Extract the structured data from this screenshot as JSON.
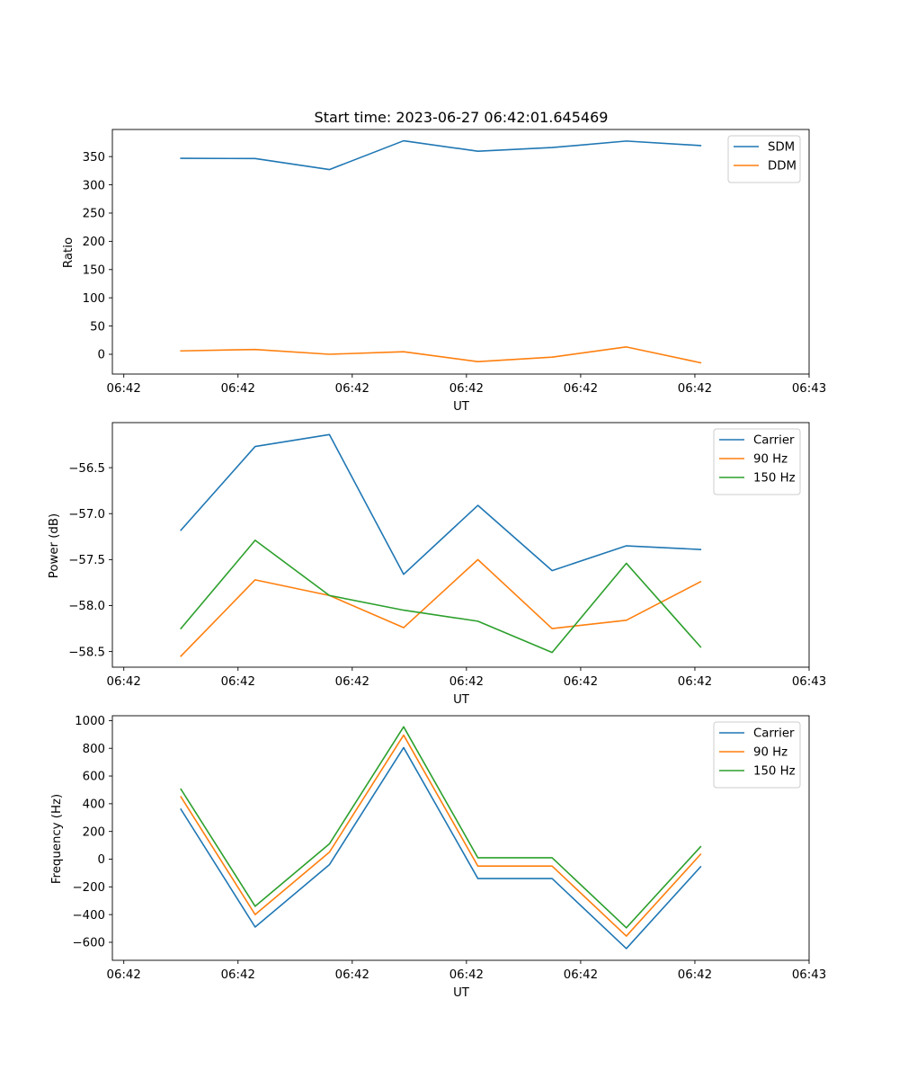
{
  "chart_data": [
    {
      "type": "line",
      "title": "Start time: 2023-06-27 06:42:01.645469",
      "xlabel": "UT",
      "ylabel": "Ratio",
      "x_tick_labels": [
        "06:42",
        "06:42",
        "06:42",
        "06:42",
        "06:42",
        "06:42",
        "06:43"
      ],
      "x_tick_positions": [
        0,
        1,
        2,
        3,
        4,
        5,
        6
      ],
      "xlim": [
        -0.1,
        6.0
      ],
      "x": [
        0.5,
        1.15,
        1.8,
        2.45,
        3.1,
        3.75,
        4.4,
        5.05
      ],
      "ylim": [
        -35,
        398
      ],
      "y_ticks": [
        0,
        50,
        100,
        150,
        200,
        250,
        300,
        350
      ],
      "grid": false,
      "legend_position": "top-right",
      "series": [
        {
          "name": "SDM",
          "color": "#1f77b4",
          "values": [
            347,
            346.5,
            327,
            378,
            359.5,
            366,
            377.5,
            369.5
          ]
        },
        {
          "name": "DDM",
          "color": "#ff7f0e",
          "values": [
            6,
            8.5,
            0,
            4.5,
            -13,
            -5,
            13,
            -15
          ]
        }
      ]
    },
    {
      "type": "line",
      "title": "",
      "xlabel": "UT",
      "ylabel": "Power (dB)",
      "x_tick_labels": [
        "06:42",
        "06:42",
        "06:42",
        "06:42",
        "06:42",
        "06:42",
        "06:43"
      ],
      "x_tick_positions": [
        0,
        1,
        2,
        3,
        4,
        5,
        6
      ],
      "xlim": [
        -0.1,
        6.0
      ],
      "x": [
        0.5,
        1.15,
        1.8,
        2.45,
        3.1,
        3.75,
        4.4,
        5.05
      ],
      "ylim": [
        -58.67,
        -56.01
      ],
      "y_ticks": [
        -58.5,
        -58.0,
        -57.5,
        -57.0,
        -56.5
      ],
      "y_tick_labels": [
        "−58.5",
        "−58.0",
        "−57.5",
        "−57.0",
        "−56.5"
      ],
      "grid": false,
      "legend_position": "top-right",
      "series": [
        {
          "name": "Carrier",
          "color": "#1f77b4",
          "values": [
            -57.18,
            -56.27,
            -56.14,
            -57.66,
            -56.91,
            -57.62,
            -57.35,
            -57.39
          ]
        },
        {
          "name": "90 Hz",
          "color": "#ff7f0e",
          "values": [
            -58.55,
            -57.72,
            -57.89,
            -58.24,
            -57.5,
            -58.25,
            -58.16,
            -57.74
          ]
        },
        {
          "name": "150 Hz",
          "color": "#2ca02c",
          "values": [
            -58.25,
            -57.29,
            -57.89,
            -58.05,
            -58.17,
            -58.51,
            -57.54,
            -58.45
          ]
        }
      ]
    },
    {
      "type": "line",
      "title": "",
      "xlabel": "UT",
      "ylabel": "Frequency (Hz)",
      "x_tick_labels": [
        "06:42",
        "06:42",
        "06:42",
        "06:42",
        "06:42",
        "06:42",
        "06:43"
      ],
      "x_tick_positions": [
        0,
        1,
        2,
        3,
        4,
        5,
        6
      ],
      "xlim": [
        -0.1,
        6.0
      ],
      "x": [
        0.5,
        1.15,
        1.8,
        2.45,
        3.1,
        3.75,
        4.4,
        5.05
      ],
      "ylim": [
        -730,
        1035
      ],
      "y_ticks": [
        -600,
        -400,
        -200,
        0,
        200,
        400,
        600,
        800,
        1000
      ],
      "y_tick_labels": [
        "−600",
        "−400",
        "−200",
        "0",
        "200",
        "400",
        "600",
        "800",
        "1000"
      ],
      "grid": false,
      "legend_position": "top-right",
      "series": [
        {
          "name": "Carrier",
          "color": "#1f77b4",
          "values": [
            360,
            -490,
            -40,
            805,
            -140,
            -140,
            -645,
            -55
          ]
        },
        {
          "name": "90 Hz",
          "color": "#ff7f0e",
          "values": [
            450,
            -400,
            50,
            895,
            -50,
            -50,
            -555,
            35
          ]
        },
        {
          "name": "150 Hz",
          "color": "#2ca02c",
          "values": [
            505,
            -340,
            110,
            955,
            10,
            10,
            -495,
            90
          ]
        }
      ]
    }
  ]
}
